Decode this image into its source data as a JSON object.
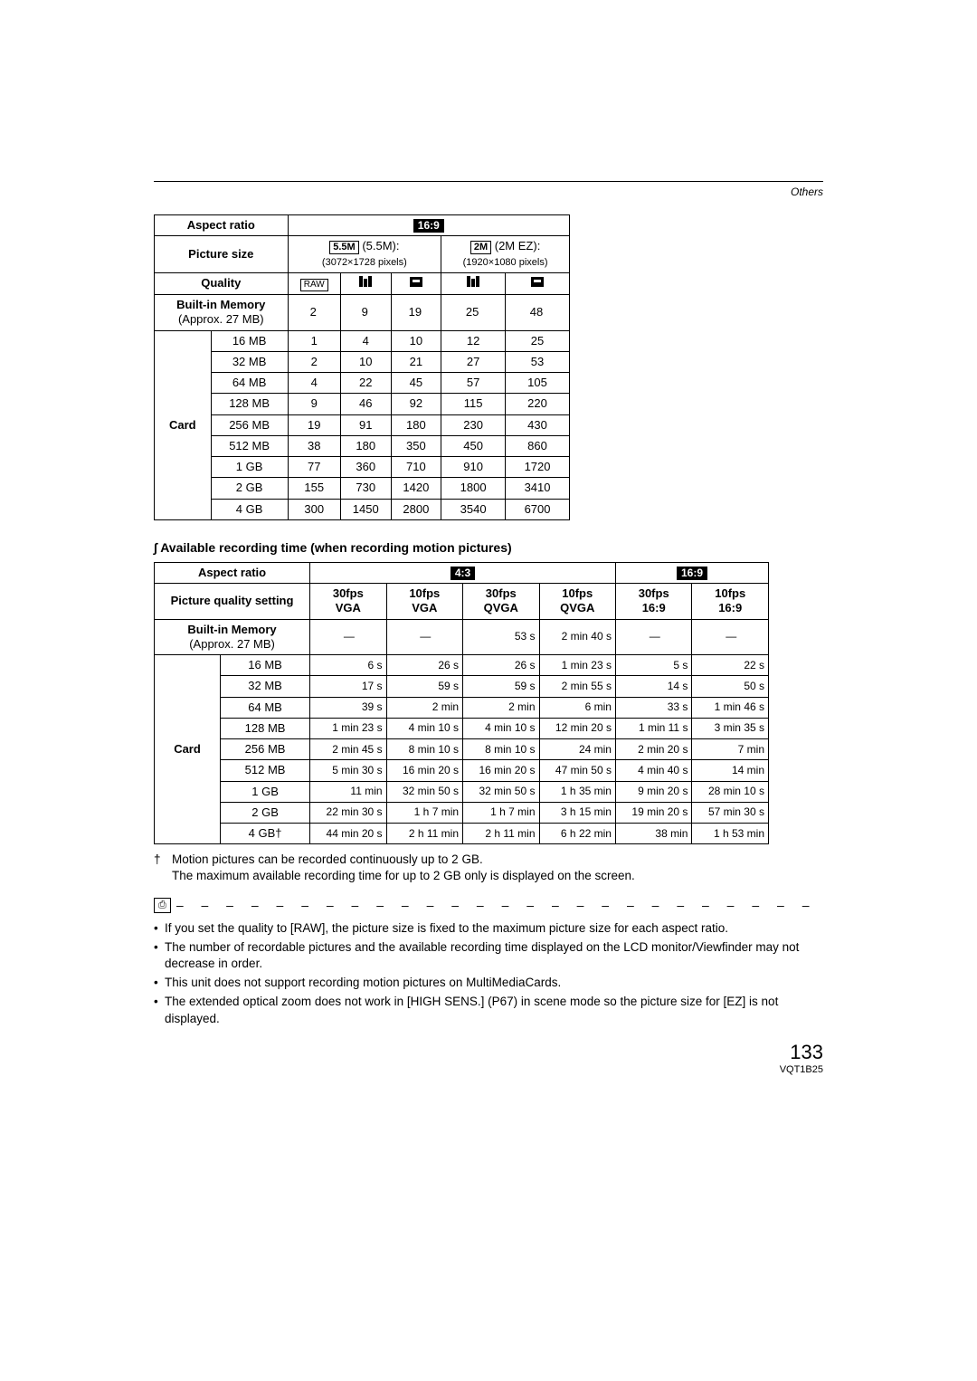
{
  "header": {
    "section": "Others"
  },
  "table1": {
    "labels": {
      "aspect_ratio": "Aspect ratio",
      "picture_size": "Picture size",
      "quality": "Quality",
      "builtin_mem": "Built-in Memory",
      "builtin_sub": "(Approx. 27 MB)",
      "card": "Card"
    },
    "aspect_badge": "16:9",
    "size1_badge": "5.5M",
    "size1_text": "(5.5M):",
    "size1_sub": "(3072×1728 pixels)",
    "size2_badge": "2M",
    "size2_text": "(2M EZ):",
    "size2_sub": "(1920×1080 pixels)",
    "quality_raw": "RAW",
    "builtin": [
      "2",
      "9",
      "19",
      "25",
      "48"
    ],
    "rows": [
      {
        "size": "16 MB",
        "v": [
          "1",
          "4",
          "10",
          "12",
          "25"
        ]
      },
      {
        "size": "32 MB",
        "v": [
          "2",
          "10",
          "21",
          "27",
          "53"
        ]
      },
      {
        "size": "64 MB",
        "v": [
          "4",
          "22",
          "45",
          "57",
          "105"
        ]
      },
      {
        "size": "128 MB",
        "v": [
          "9",
          "46",
          "92",
          "115",
          "220"
        ]
      },
      {
        "size": "256 MB",
        "v": [
          "19",
          "91",
          "180",
          "230",
          "430"
        ]
      },
      {
        "size": "512 MB",
        "v": [
          "38",
          "180",
          "350",
          "450",
          "860"
        ]
      },
      {
        "size": "1 GB",
        "v": [
          "77",
          "360",
          "710",
          "910",
          "1720"
        ]
      },
      {
        "size": "2 GB",
        "v": [
          "155",
          "730",
          "1420",
          "1800",
          "3410"
        ]
      },
      {
        "size": "4 GB",
        "v": [
          "300",
          "1450",
          "2800",
          "3540",
          "6700"
        ]
      }
    ]
  },
  "section2_title": "∫ Available recording time (when recording motion pictures)",
  "table2": {
    "labels": {
      "aspect_ratio": "Aspect ratio",
      "pqs": "Picture quality setting",
      "builtin_mem": "Built-in Memory",
      "builtin_sub": "(Approx. 27 MB)",
      "card": "Card"
    },
    "aspect1": "4:3",
    "aspect2": "16:9",
    "cols": [
      {
        "a": "30fps",
        "b": "VGA"
      },
      {
        "a": "10fps",
        "b": "VGA"
      },
      {
        "a": "30fps",
        "b": "QVGA"
      },
      {
        "a": "10fps",
        "b": "QVGA"
      },
      {
        "a": "30fps",
        "b": "16:9"
      },
      {
        "a": "10fps",
        "b": "16:9"
      }
    ],
    "builtin": [
      "—",
      "—",
      "53 s",
      "2 min 40 s",
      "—",
      "—"
    ],
    "rows": [
      {
        "size": "16 MB",
        "v": [
          "6 s",
          "26 s",
          "26 s",
          "1 min 23 s",
          "5 s",
          "22 s"
        ]
      },
      {
        "size": "32 MB",
        "v": [
          "17 s",
          "59 s",
          "59 s",
          "2 min 55 s",
          "14 s",
          "50 s"
        ]
      },
      {
        "size": "64 MB",
        "v": [
          "39 s",
          "2 min",
          "2 min",
          "6 min",
          "33 s",
          "1 min 46 s"
        ]
      },
      {
        "size": "128 MB",
        "v": [
          "1 min 23 s",
          "4 min 10 s",
          "4 min 10 s",
          "12 min 20 s",
          "1 min 11 s",
          "3 min 35 s"
        ]
      },
      {
        "size": "256 MB",
        "v": [
          "2 min 45 s",
          "8 min 10 s",
          "8 min 10 s",
          "24 min",
          "2 min 20 s",
          "7 min"
        ]
      },
      {
        "size": "512 MB",
        "v": [
          "5 min 30 s",
          "16 min 20 s",
          "16 min 20 s",
          "47 min 50 s",
          "4 min 40 s",
          "14 min"
        ]
      },
      {
        "size": "1 GB",
        "v": [
          "11 min",
          "32 min 50 s",
          "32 min 50 s",
          "1 h 35 min",
          "9 min 20 s",
          "28 min 10 s"
        ]
      },
      {
        "size": "2 GB",
        "v": [
          "22 min 30 s",
          "1 h 7 min",
          "1 h 7 min",
          "3 h 15 min",
          "19 min 20 s",
          "57 min 30 s"
        ]
      },
      {
        "size": "4 GB†",
        "v": [
          "44 min 20 s",
          "2 h 11 min",
          "2 h 11 min",
          "6 h 22 min",
          "38 min",
          "1 h 53 min"
        ]
      }
    ]
  },
  "dagger_note": {
    "line1": "Motion pictures can be recorded continuously up to 2 GB.",
    "line2": "The maximum available recording time for up to 2 GB only is displayed on the screen."
  },
  "note_icon": "⎙",
  "bullets": [
    "If you set the quality to [RAW], the picture size is fixed to the maximum picture size for each aspect ratio.",
    "The number of recordable pictures and the available recording time displayed on the LCD monitor/Viewfinder may not decrease in order.",
    "This unit does not support recording motion pictures on MultiMediaCards.",
    "The extended optical zoom does not work in [HIGH SENS.] (P67) in scene mode so the picture size for [EZ] is not displayed."
  ],
  "page_number": "133",
  "model": "VQT1B25"
}
